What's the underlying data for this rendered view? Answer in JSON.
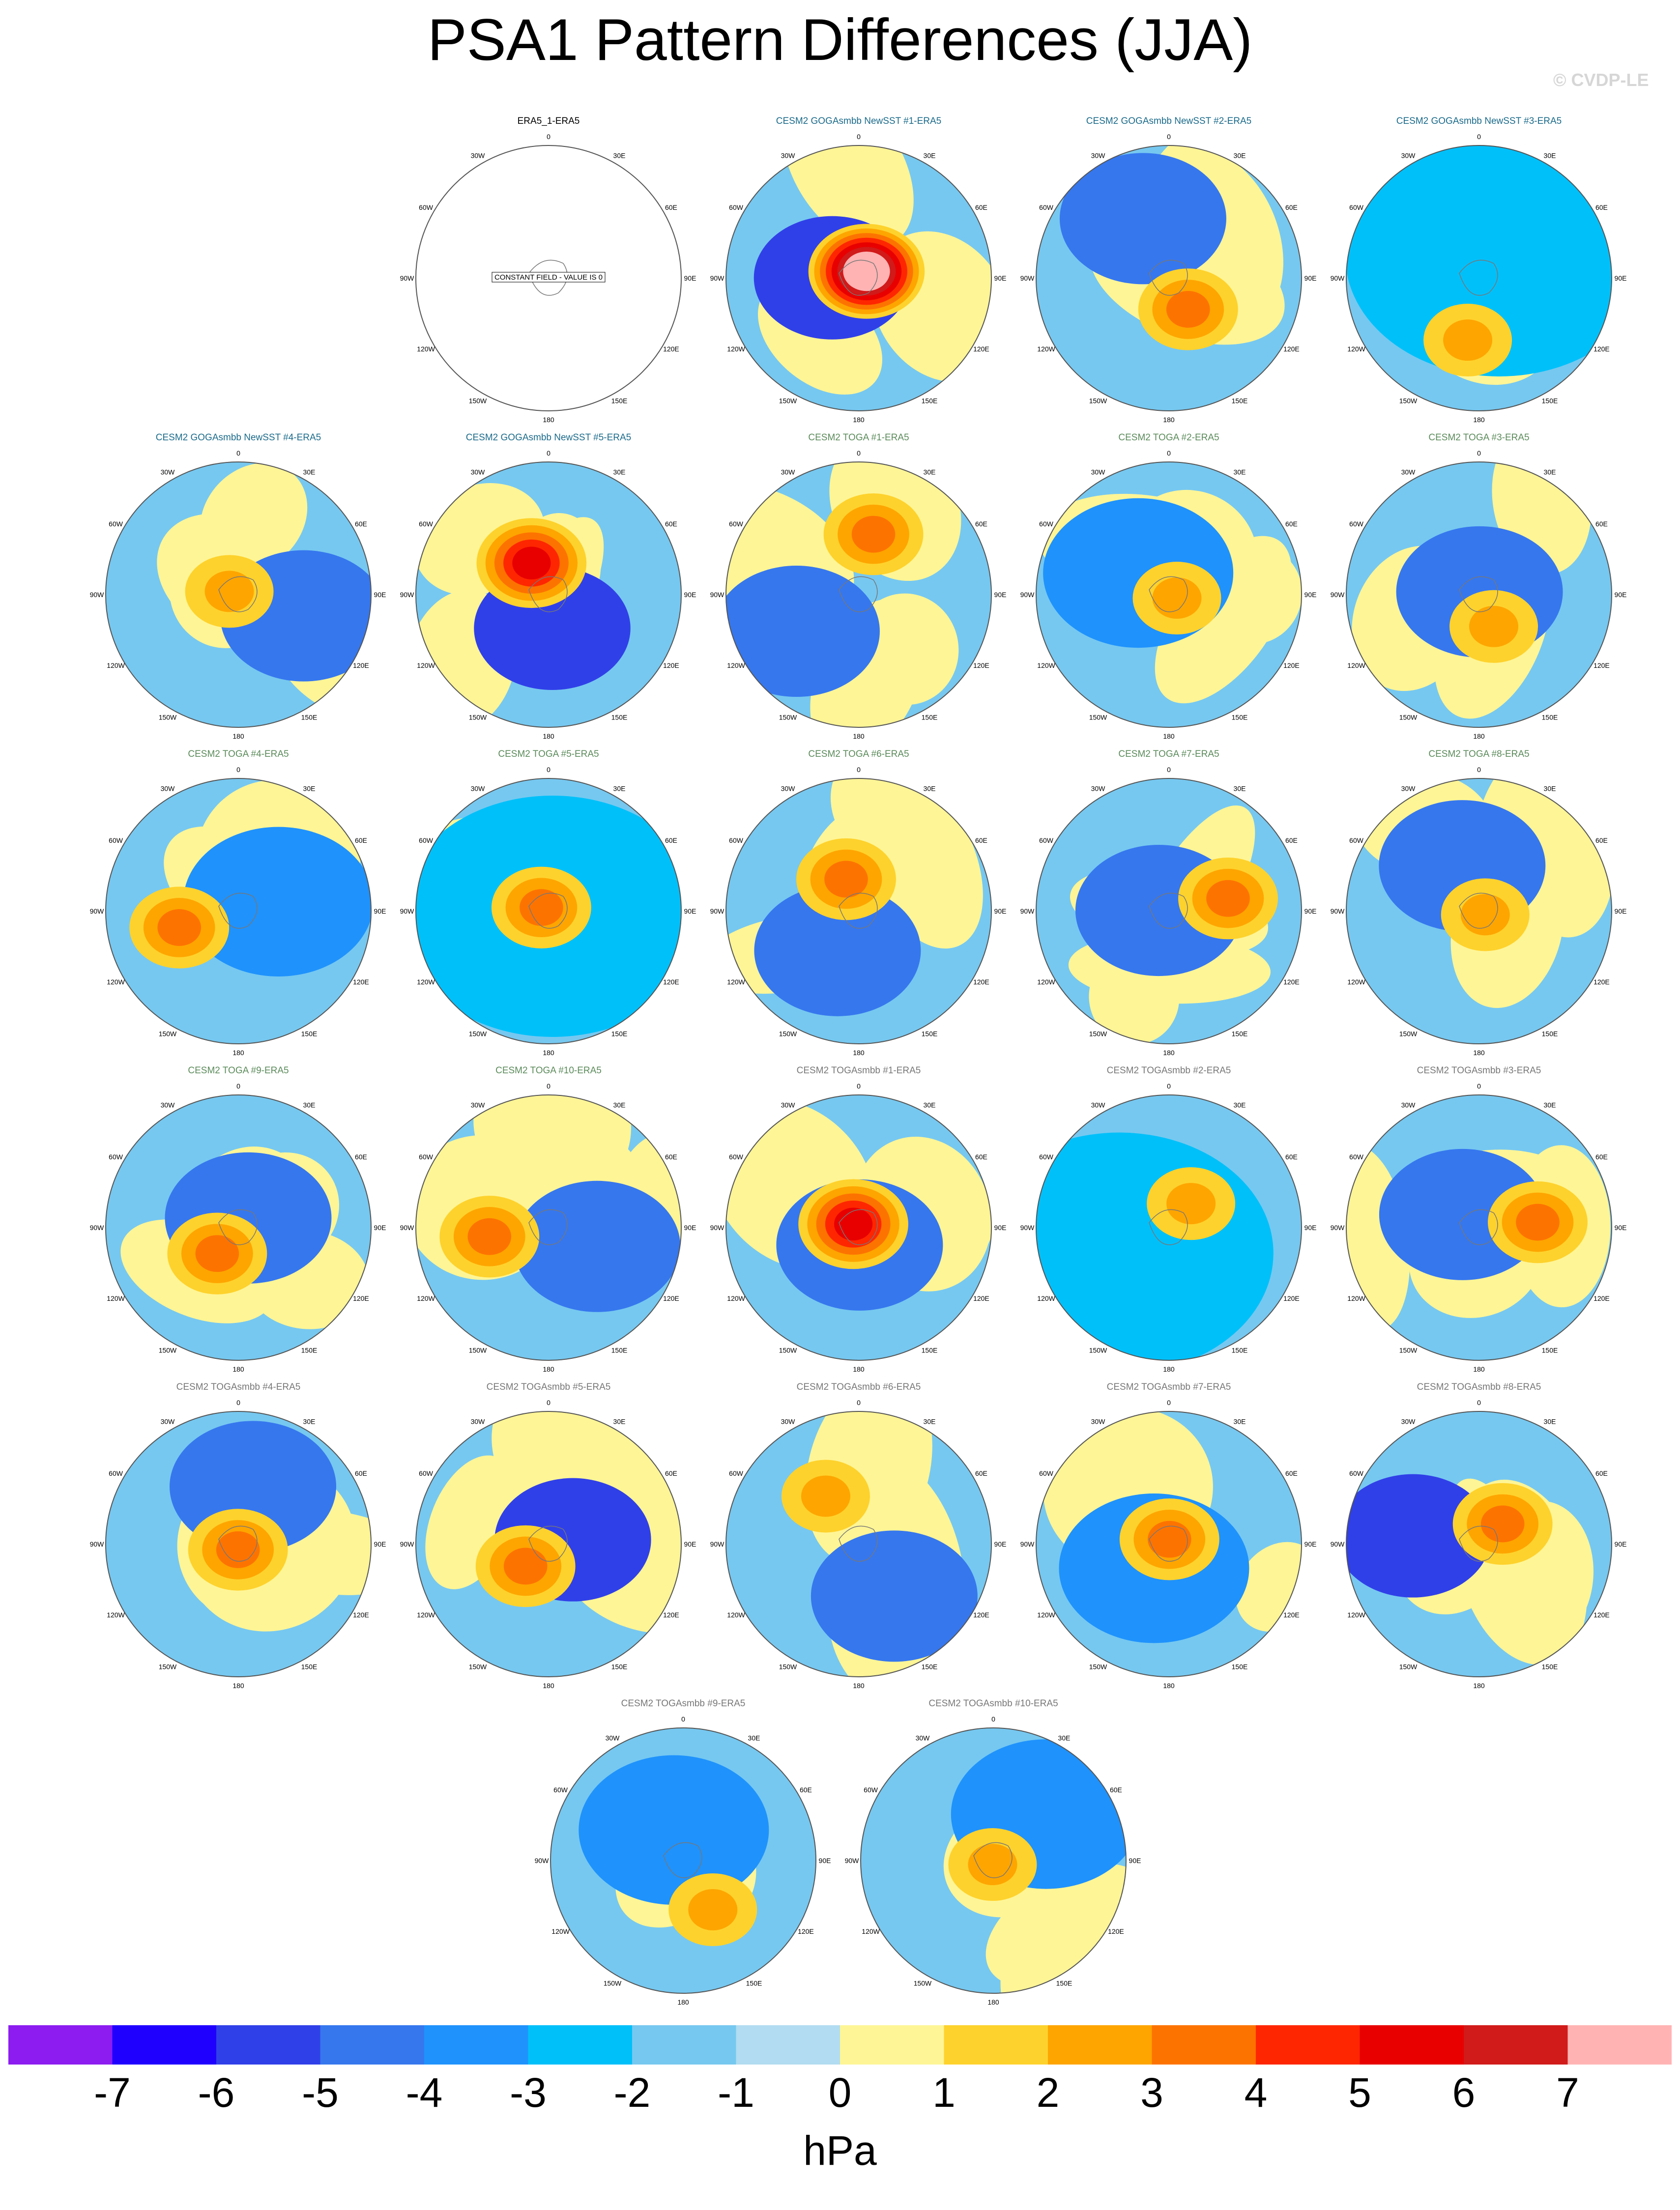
{
  "page": {
    "title": "PSA1 Pattern Differences (JJA)",
    "watermark": "© CVDP-LE",
    "units": "hPa"
  },
  "chart_data": {
    "type": "heatmap",
    "projection": "south-polar stereographic",
    "lon_labels": [
      "0",
      "30E",
      "60E",
      "90E",
      "120E",
      "150E",
      "180",
      "150W",
      "120W",
      "90W",
      "60W",
      "30W"
    ],
    "colorbar": {
      "levels": [
        -7,
        -6,
        -5,
        -4,
        -3,
        -2,
        -1,
        0,
        1,
        2,
        3,
        4,
        5,
        6,
        7
      ],
      "tick_labels": [
        "-7",
        "-6",
        "-5",
        "-4",
        "-3",
        "-2",
        "-1",
        "0",
        "1",
        "2",
        "3",
        "4",
        "5",
        "6",
        "7"
      ],
      "colors": [
        "#8c1cf0",
        "#1f00ff",
        "#3040e8",
        "#3677ee",
        "#1f92fc",
        "#00c0fa",
        "#76c8f0",
        "#b2dcf1",
        "#fef596",
        "#fed22c",
        "#fea500",
        "#fd7300",
        "#fe2600",
        "#e80000",
        "#d11a1a",
        "#ffb3b3"
      ]
    },
    "panels": [
      {
        "title": "ERA5_1-ERA5",
        "title_color": "#000000",
        "constant_field": true,
        "note": "CONSTANT FIELD - VALUE IS 0"
      },
      {
        "title": "CESM2 GOGAsmbb NewSST #1-ERA5",
        "title_color": "#1a6a8a",
        "approx_min": -4,
        "approx_max": 8
      },
      {
        "title": "CESM2 GOGAsmbb NewSST #2-ERA5",
        "title_color": "#1a6a8a",
        "approx_min": -3,
        "approx_max": 3
      },
      {
        "title": "CESM2 GOGAsmbb NewSST #3-ERA5",
        "title_color": "#1a6a8a",
        "approx_min": -1,
        "approx_max": 2
      },
      {
        "title": "CESM2 GOGAsmbb NewSST #4-ERA5",
        "title_color": "#1a6a8a",
        "approx_min": -3,
        "approx_max": 2
      },
      {
        "title": "CESM2 GOGAsmbb NewSST #5-ERA5",
        "title_color": "#1a6a8a",
        "approx_min": -4,
        "approx_max": 5
      },
      {
        "title": "CESM2 TOGA #1-ERA5",
        "title_color": "#5a8a5a",
        "approx_min": -3,
        "approx_max": 3
      },
      {
        "title": "CESM2 TOGA #2-ERA5",
        "title_color": "#5a8a5a",
        "approx_min": -2,
        "approx_max": 2
      },
      {
        "title": "CESM2 TOGA #3-ERA5",
        "title_color": "#5a8a5a",
        "approx_min": -3,
        "approx_max": 2
      },
      {
        "title": "CESM2 TOGA #4-ERA5",
        "title_color": "#5a8a5a",
        "approx_min": -2,
        "approx_max": 3
      },
      {
        "title": "CESM2 TOGA #5-ERA5",
        "title_color": "#5a8a5a",
        "approx_min": -1,
        "approx_max": 3
      },
      {
        "title": "CESM2 TOGA #6-ERA5",
        "title_color": "#5a8a5a",
        "approx_min": -3,
        "approx_max": 3
      },
      {
        "title": "CESM2 TOGA #7-ERA5",
        "title_color": "#5a8a5a",
        "approx_min": -3,
        "approx_max": 3
      },
      {
        "title": "CESM2 TOGA #8-ERA5",
        "title_color": "#5a8a5a",
        "approx_min": -3,
        "approx_max": 2
      },
      {
        "title": "CESM2 TOGA #9-ERA5",
        "title_color": "#5a8a5a",
        "approx_min": -3,
        "approx_max": 3
      },
      {
        "title": "CESM2 TOGA #10-ERA5",
        "title_color": "#5a8a5a",
        "approx_min": -3,
        "approx_max": 3
      },
      {
        "title": "CESM2 TOGAsmbb #1-ERA5",
        "title_color": "#777777",
        "approx_min": -3,
        "approx_max": 5
      },
      {
        "title": "CESM2 TOGAsmbb #2-ERA5",
        "title_color": "#777777",
        "approx_min": -1,
        "approx_max": 2
      },
      {
        "title": "CESM2 TOGAsmbb #3-ERA5",
        "title_color": "#777777",
        "approx_min": -3,
        "approx_max": 3
      },
      {
        "title": "CESM2 TOGAsmbb #4-ERA5",
        "title_color": "#777777",
        "approx_min": -3,
        "approx_max": 3
      },
      {
        "title": "CESM2 TOGAsmbb #5-ERA5",
        "title_color": "#777777",
        "approx_min": -4,
        "approx_max": 3
      },
      {
        "title": "CESM2 TOGAsmbb #6-ERA5",
        "title_color": "#777777",
        "approx_min": -3,
        "approx_max": 2
      },
      {
        "title": "CESM2 TOGAsmbb #7-ERA5",
        "title_color": "#777777",
        "approx_min": -2,
        "approx_max": 3
      },
      {
        "title": "CESM2 TOGAsmbb #8-ERA5",
        "title_color": "#777777",
        "approx_min": -4,
        "approx_max": 3
      },
      {
        "title": "CESM2 TOGAsmbb #9-ERA5",
        "title_color": "#777777",
        "approx_min": -2,
        "approx_max": 2
      },
      {
        "title": "CESM2 TOGAsmbb #10-ERA5",
        "title_color": "#777777",
        "approx_min": -2,
        "approx_max": 2
      }
    ]
  }
}
